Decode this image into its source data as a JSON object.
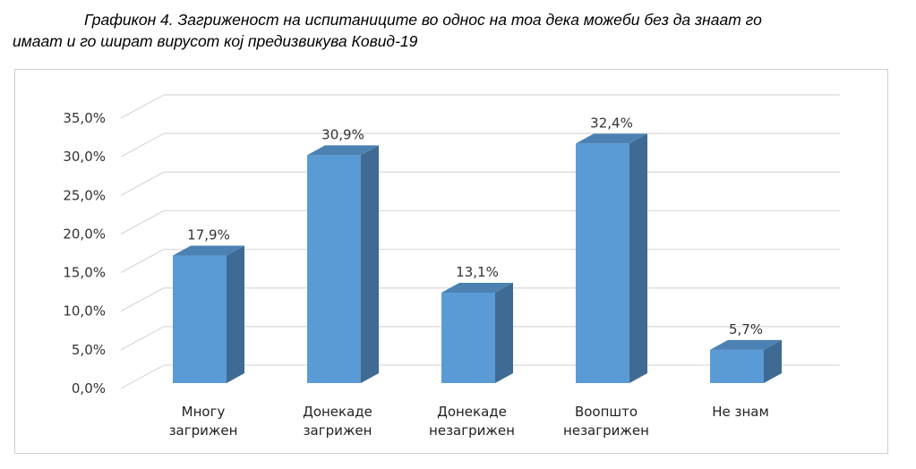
{
  "caption": {
    "line1": "Графикон 4. Загриженост на испитаниците во однос на тоа дека можеби без да знаат го",
    "line2": "имаат и го шират вирусот кој предизвикува Ковид-19"
  },
  "chart_data": {
    "type": "bar",
    "style": "3d-column",
    "categories": [
      [
        "Многу",
        "загрижен"
      ],
      [
        "Донекаде",
        "загрижен"
      ],
      [
        "Донекаде",
        "незагрижен"
      ],
      [
        "Воопшто",
        "незагрижен"
      ],
      [
        "Не знам"
      ]
    ],
    "values": [
      17.9,
      30.9,
      13.1,
      32.4,
      5.7
    ],
    "value_labels": [
      "17,9%",
      "30,9%",
      "13,1%",
      "32,4%",
      "5,7%"
    ],
    "y_ticks": [
      "0,0%",
      "5,0%",
      "10,0%",
      "15,0%",
      "20,0%",
      "25,0%",
      "30,0%",
      "35,0%"
    ],
    "ylim": [
      0,
      35
    ],
    "grid": true,
    "legend": "none",
    "colors": {
      "bar_front": "#5b9bd5",
      "bar_side": "#3f6a93",
      "bar_top": "#4b81b3",
      "grid": "#d9d9d9"
    }
  }
}
